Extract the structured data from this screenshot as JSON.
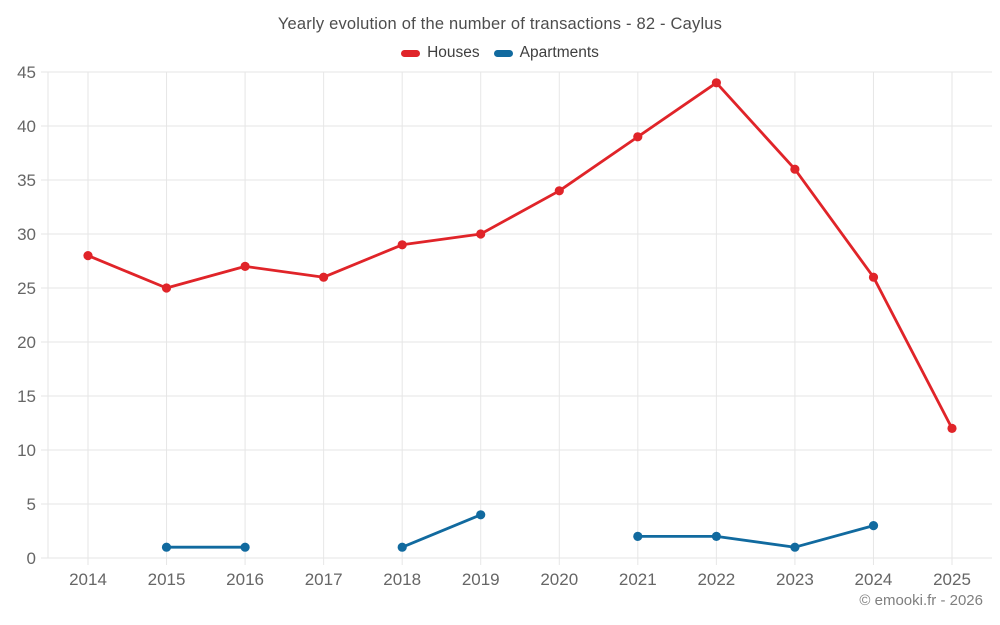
{
  "title": "Yearly evolution of the number of transactions - 82 - Caylus",
  "footer": "© emooki.fr - 2026",
  "colors": {
    "houses": "#e02429",
    "apartments": "#116a9f",
    "grid": "#e6e6e6",
    "axis_text": "#666666",
    "title_text": "#4d4d4d"
  },
  "chart_data": {
    "type": "line",
    "title": "Yearly evolution of the number of transactions - 82 - Caylus",
    "categories": [
      "2014",
      "2015",
      "2016",
      "2017",
      "2018",
      "2019",
      "2020",
      "2021",
      "2022",
      "2023",
      "2024",
      "2025"
    ],
    "series": [
      {
        "name": "Houses",
        "color_key": "houses",
        "values": [
          28,
          25,
          27,
          26,
          29,
          30,
          34,
          39,
          44,
          36,
          26,
          12
        ]
      },
      {
        "name": "Apartments",
        "color_key": "apartments",
        "values": [
          null,
          1,
          1,
          null,
          1,
          4,
          null,
          2,
          2,
          1,
          3,
          null
        ]
      }
    ],
    "xlabel": "",
    "ylabel": "",
    "ylim": [
      0,
      45
    ],
    "ytick_step": 5,
    "grid": true,
    "legend_position": "top"
  }
}
